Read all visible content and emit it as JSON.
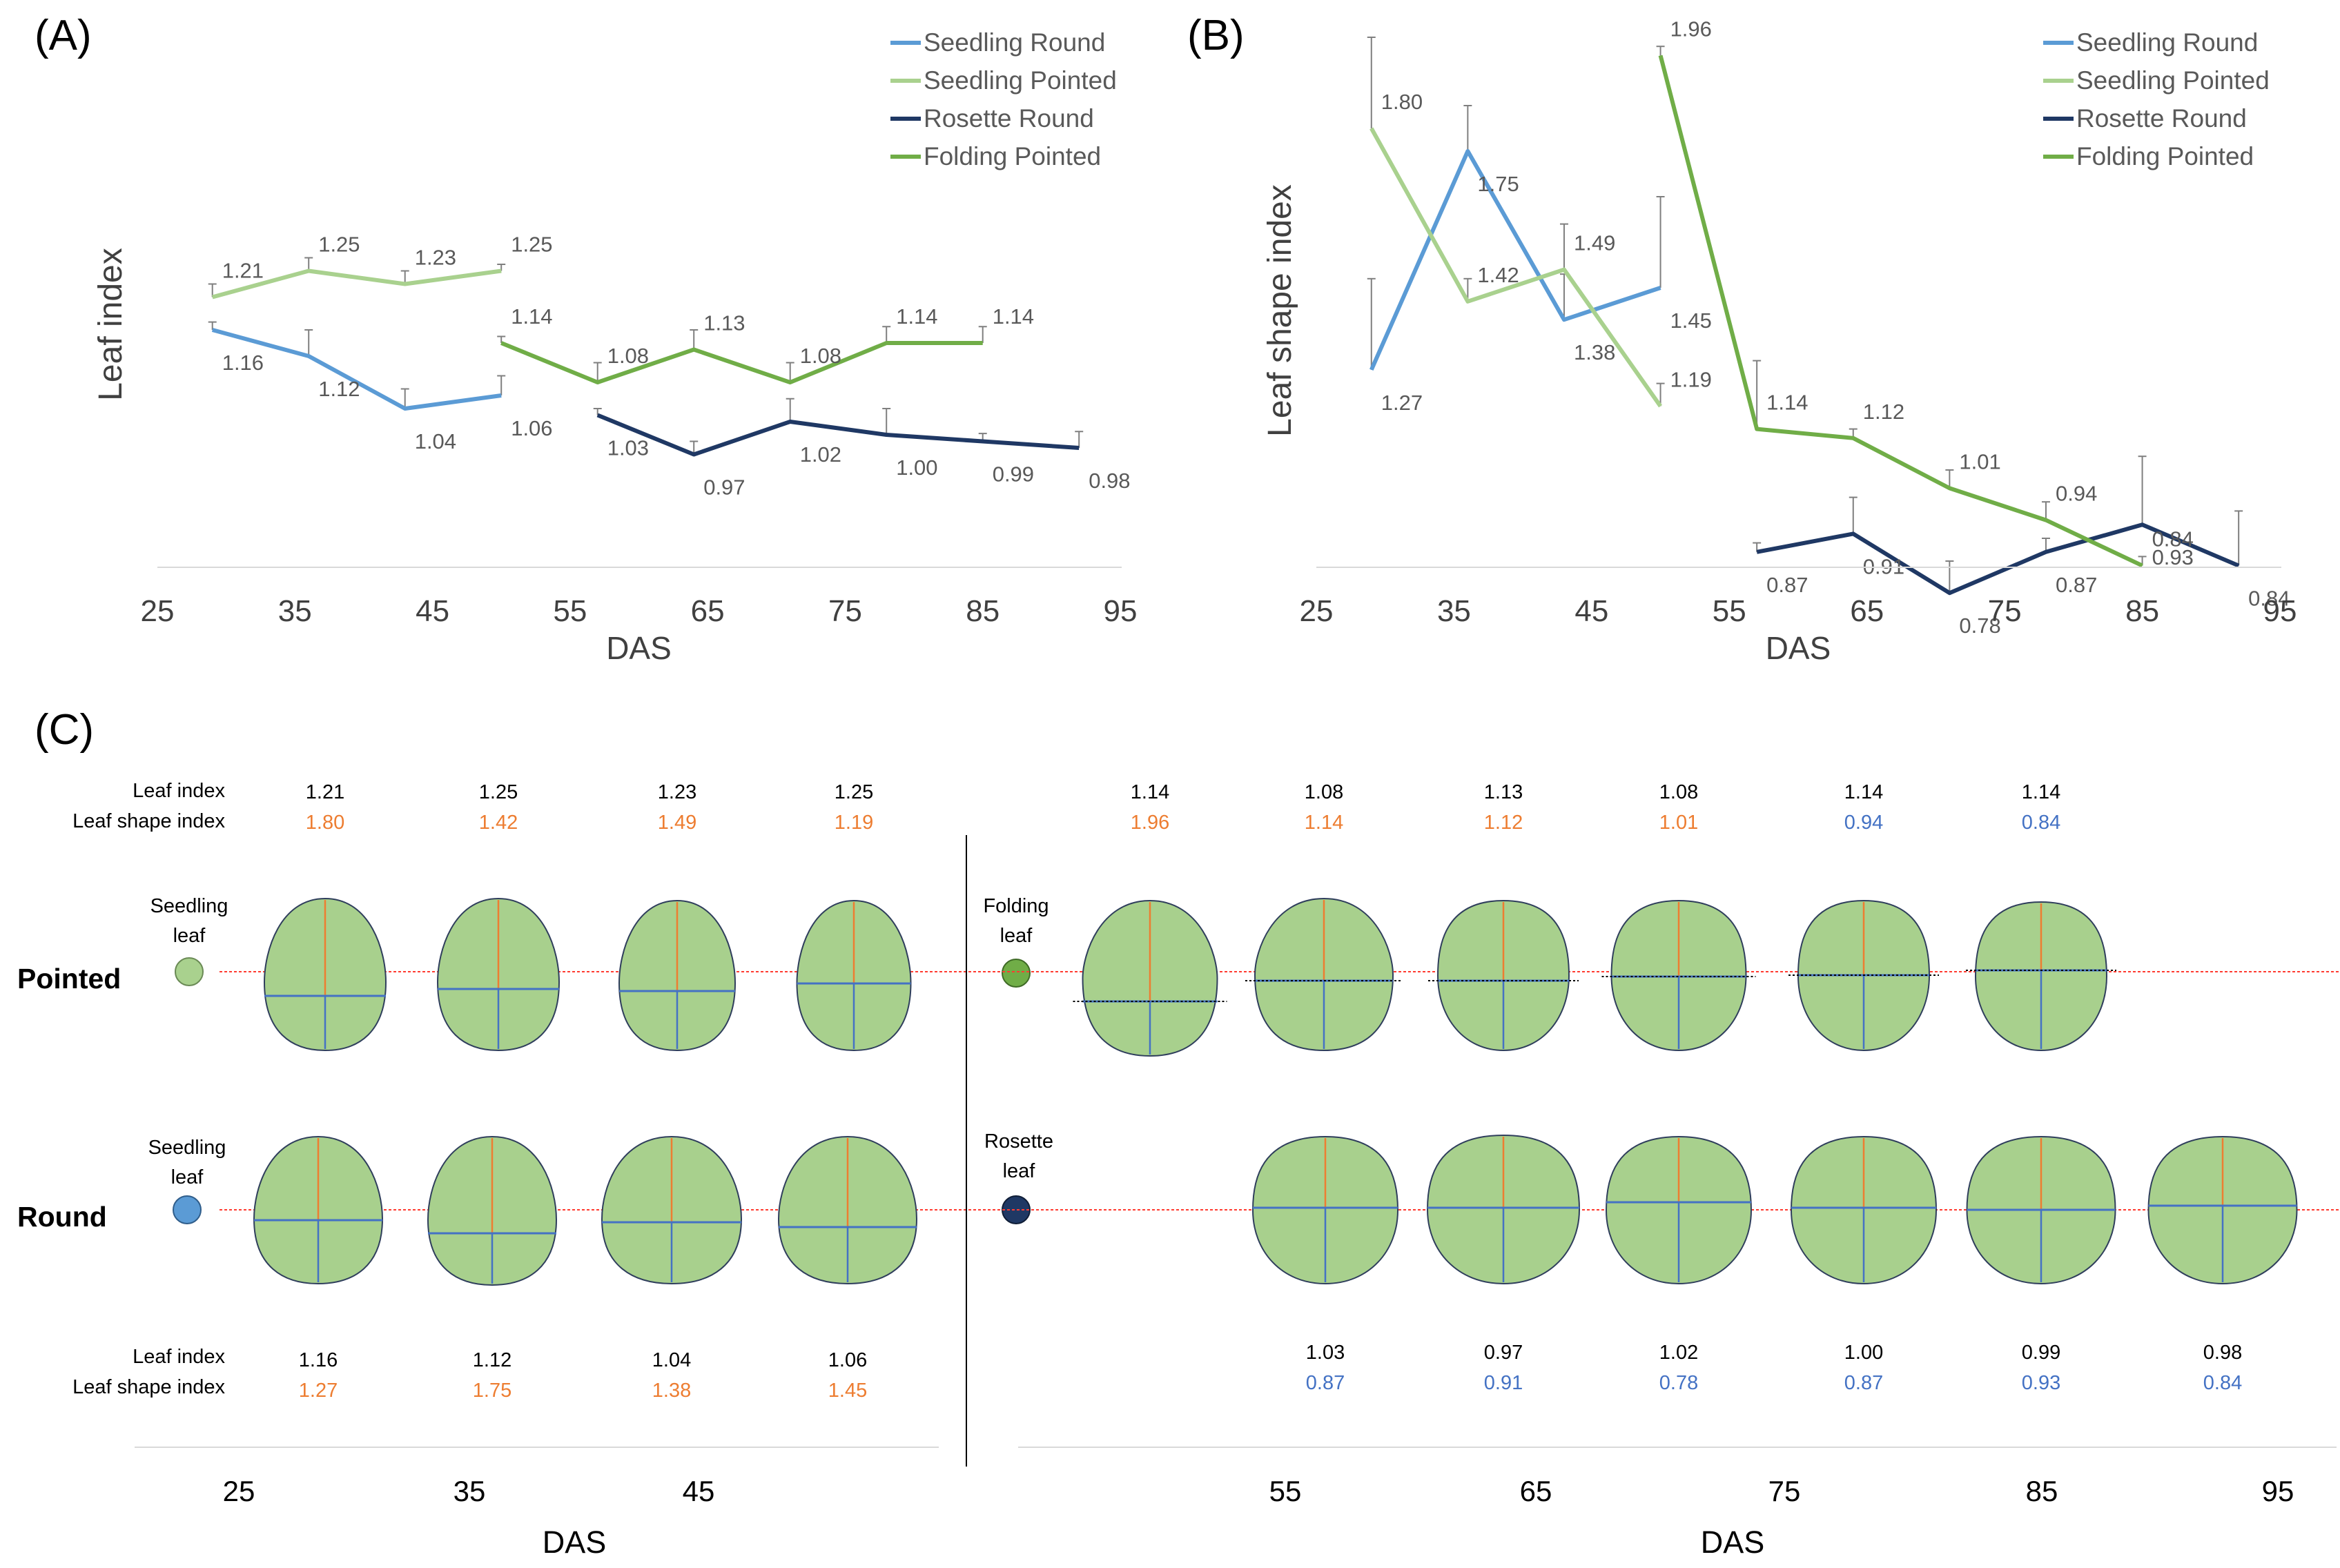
{
  "colors": {
    "seedling_round": "#5B9BD5",
    "seedling_pointed": "#A9D18E",
    "rosette_round": "#1F3864",
    "folding_pointed": "#70AD47",
    "orange_value": "#ED7D31",
    "blue_value": "#4472C4",
    "leaf_fill": "#A8D08D",
    "grid": "#D9D9D9",
    "axis_text": "#404040",
    "label_grey": "#595959"
  },
  "legend": [
    "Seedling Round",
    "Seedling Pointed",
    "Rosette Round",
    "Folding Pointed"
  ],
  "chart_data": [
    {
      "panel": "(A)",
      "type": "line",
      "title": "",
      "xlabel": "DAS",
      "ylabel": "Leaf index",
      "xlim": [
        25,
        95
      ],
      "ylim": [
        0.8,
        1.35
      ],
      "xticks": [
        25,
        35,
        45,
        55,
        65,
        75,
        85,
        95
      ],
      "series": [
        {
          "name": "Seedling Round",
          "color_key": "seedling_round",
          "x": [
            29,
            36,
            43,
            50
          ],
          "y": [
            1.16,
            1.12,
            1.04,
            1.06
          ],
          "err": [
            0.012,
            0.04,
            0.03,
            0.03
          ],
          "labels": [
            "1.16",
            "1.12",
            "1.04",
            "1.06"
          ],
          "label_pos": "below"
        },
        {
          "name": "Seedling Pointed",
          "color_key": "seedling_pointed",
          "x": [
            29,
            36,
            43,
            50
          ],
          "y": [
            1.21,
            1.25,
            1.23,
            1.25
          ],
          "err": [
            0.02,
            0.02,
            0.02,
            0.01
          ],
          "labels": [
            "1.21",
            "1.25",
            "1.23",
            "1.25"
          ],
          "label_pos": "above"
        },
        {
          "name": "Rosette Round",
          "color_key": "rosette_round",
          "x": [
            57,
            64,
            71,
            78,
            85,
            92
          ],
          "y": [
            1.03,
            0.97,
            1.02,
            1.0,
            0.99,
            0.98
          ],
          "err": [
            0.01,
            0.02,
            0.035,
            0.04,
            0.012,
            0.025
          ],
          "labels": [
            "1.03",
            "0.97",
            "1.02",
            "1.00",
            "0.99",
            "0.98"
          ],
          "label_pos": "below"
        },
        {
          "name": "Folding Pointed",
          "color_key": "folding_pointed",
          "x": [
            50,
            57,
            64,
            71,
            78,
            85
          ],
          "y": [
            1.14,
            1.08,
            1.13,
            1.08,
            1.14,
            1.14
          ],
          "err": [
            0.01,
            0.03,
            0.03,
            0.03,
            0.025,
            0.025
          ],
          "labels": [
            "1.14",
            "1.08",
            "1.13",
            "1.08",
            "1.14",
            "1.14"
          ],
          "label_pos": "above"
        }
      ]
    },
    {
      "panel": "(B)",
      "type": "line",
      "title": "",
      "xlabel": "DAS",
      "ylabel": "Leaf shape index",
      "xlim": [
        25,
        95
      ],
      "ylim": [
        0.6,
        2.0
      ],
      "xticks": [
        25,
        35,
        45,
        55,
        65,
        75,
        85,
        95
      ],
      "series": [
        {
          "name": "Seedling Round",
          "color_key": "seedling_round",
          "x": [
            29,
            36,
            43,
            50
          ],
          "y": [
            1.27,
            1.75,
            1.38,
            1.45
          ],
          "err": [
            0.2,
            0.1,
            0.1,
            0.2
          ],
          "labels": [
            "1.27",
            "1.75",
            "1.38",
            "1.45"
          ]
        },
        {
          "name": "Seedling Pointed",
          "color_key": "seedling_pointed",
          "x": [
            29,
            36,
            43,
            50
          ],
          "y": [
            1.8,
            1.42,
            1.49,
            1.19
          ],
          "err": [
            0.2,
            0.05,
            0.1,
            0.05
          ],
          "labels": [
            "1.80",
            "1.42",
            "1.49",
            "1.19"
          ]
        },
        {
          "name": "Rosette Round",
          "color_key": "rosette_round",
          "x": [
            57,
            64,
            71,
            78,
            85,
            92
          ],
          "y": [
            0.87,
            0.91,
            0.78,
            0.87,
            0.93,
            0.84
          ],
          "err": [
            0.02,
            0.08,
            0.07,
            0.03,
            0.15,
            0.12
          ],
          "labels": [
            "0.87",
            "0.91",
            "0.78",
            "0.87",
            "0.93",
            "0.84"
          ]
        },
        {
          "name": "Folding Pointed",
          "color_key": "folding_pointed",
          "x": [
            50,
            57,
            64,
            71,
            78,
            85
          ],
          "y": [
            1.96,
            1.14,
            1.12,
            1.01,
            0.94,
            0.84
          ],
          "err": [
            0.02,
            0.15,
            0.02,
            0.04,
            0.04,
            0.02
          ],
          "labels": [
            "1.96",
            "1.14",
            "1.12",
            "1.01",
            "0.94",
            "0.84"
          ]
        }
      ]
    }
  ],
  "panel_c": {
    "panel_label": "(C)",
    "row_label_leaf_index": "Leaf index",
    "row_label_shape_index": "Leaf shape index",
    "top_left": {
      "leaf_index": [
        "1.21",
        "1.25",
        "1.23",
        "1.25"
      ],
      "shape_index": [
        "1.80",
        "1.42",
        "1.49",
        "1.19"
      ],
      "shape_color": [
        "orange",
        "orange",
        "orange",
        "orange"
      ]
    },
    "top_right": {
      "leaf_index": [
        "1.14",
        "1.08",
        "1.13",
        "1.08",
        "1.14",
        "1.14"
      ],
      "shape_index": [
        "1.96",
        "1.14",
        "1.12",
        "1.01",
        "0.94",
        "0.84"
      ],
      "shape_color": [
        "orange",
        "orange",
        "orange",
        "orange",
        "blue",
        "blue"
      ]
    },
    "bottom_left": {
      "leaf_index": [
        "1.16",
        "1.12",
        "1.04",
        "1.06"
      ],
      "shape_index": [
        "1.27",
        "1.75",
        "1.38",
        "1.45"
      ],
      "shape_color": [
        "orange",
        "orange",
        "orange",
        "orange"
      ]
    },
    "bottom_right": {
      "leaf_index": [
        "1.03",
        "0.97",
        "1.02",
        "1.00",
        "0.99",
        "0.98"
      ],
      "shape_index": [
        "0.87",
        "0.91",
        "0.78",
        "0.87",
        "0.93",
        "0.84"
      ],
      "shape_color": [
        "blue",
        "blue",
        "blue",
        "blue",
        "blue",
        "blue"
      ]
    },
    "row_pointed": "Pointed",
    "row_round": "Round",
    "seedling_leaf_top": [
      "Seedling",
      "leaf"
    ],
    "seedling_leaf_bottom": [
      "Seedling",
      "leaf"
    ],
    "folding_leaf": [
      "Folding",
      "leaf"
    ],
    "rosette_leaf": [
      "Rosette",
      "leaf"
    ],
    "ticks_left": [
      "25",
      "35",
      "45"
    ],
    "ticks_right": [
      "55",
      "65",
      "75",
      "85",
      "95"
    ],
    "xlabel": "DAS"
  }
}
